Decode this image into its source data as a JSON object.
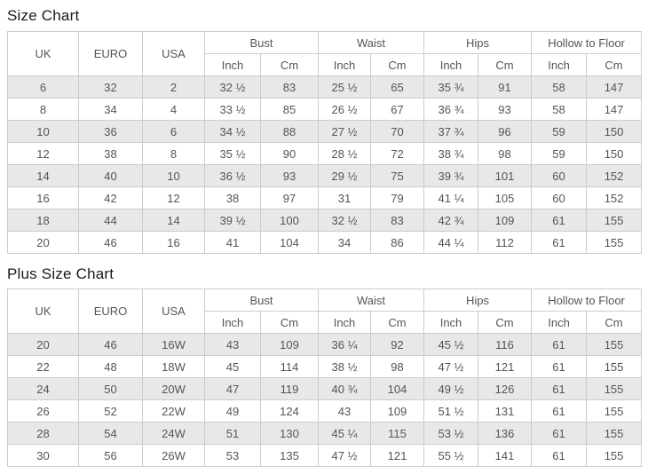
{
  "size_chart": {
    "title": "Size Chart",
    "col_headers": [
      "UK",
      "EURO",
      "USA"
    ],
    "groups": [
      "Bust",
      "Waist",
      "Hips",
      "Hollow to Floor"
    ],
    "sub_headers": [
      "Inch",
      "Cm"
    ],
    "rows": [
      [
        "6",
        "32",
        "2",
        "32 ½",
        "83",
        "25 ½",
        "65",
        "35 ¾",
        "91",
        "58",
        "147"
      ],
      [
        "8",
        "34",
        "4",
        "33 ½",
        "85",
        "26 ½",
        "67",
        "36 ¾",
        "93",
        "58",
        "147"
      ],
      [
        "10",
        "36",
        "6",
        "34 ½",
        "88",
        "27 ½",
        "70",
        "37 ¾",
        "96",
        "59",
        "150"
      ],
      [
        "12",
        "38",
        "8",
        "35 ½",
        "90",
        "28 ½",
        "72",
        "38 ¾",
        "98",
        "59",
        "150"
      ],
      [
        "14",
        "40",
        "10",
        "36 ½",
        "93",
        "29 ½",
        "75",
        "39 ¾",
        "101",
        "60",
        "152"
      ],
      [
        "16",
        "42",
        "12",
        "38",
        "97",
        "31",
        "79",
        "41 ¼",
        "105",
        "60",
        "152"
      ],
      [
        "18",
        "44",
        "14",
        "39 ½",
        "100",
        "32 ½",
        "83",
        "42 ¾",
        "109",
        "61",
        "155"
      ],
      [
        "20",
        "46",
        "16",
        "41",
        "104",
        "34",
        "86",
        "44 ¼",
        "112",
        "61",
        "155"
      ]
    ]
  },
  "plus_size_chart": {
    "title": "Plus Size Chart",
    "col_headers": [
      "UK",
      "EURO",
      "USA"
    ],
    "groups": [
      "Bust",
      "Waist",
      "Hips",
      "Hollow to Floor"
    ],
    "sub_headers": [
      "Inch",
      "Cm"
    ],
    "rows": [
      [
        "20",
        "46",
        "16W",
        "43",
        "109",
        "36 ¼",
        "92",
        "45 ½",
        "116",
        "61",
        "155"
      ],
      [
        "22",
        "48",
        "18W",
        "45",
        "114",
        "38 ½",
        "98",
        "47 ½",
        "121",
        "61",
        "155"
      ],
      [
        "24",
        "50",
        "20W",
        "47",
        "119",
        "40 ¾",
        "104",
        "49 ½",
        "126",
        "61",
        "155"
      ],
      [
        "26",
        "52",
        "22W",
        "49",
        "124",
        "43",
        "109",
        "51 ½",
        "131",
        "61",
        "155"
      ],
      [
        "28",
        "54",
        "24W",
        "51",
        "130",
        "45 ¼",
        "115",
        "53 ½",
        "136",
        "61",
        "155"
      ],
      [
        "30",
        "56",
        "26W",
        "53",
        "135",
        "47 ½",
        "121",
        "55 ½",
        "141",
        "61",
        "155"
      ]
    ]
  }
}
